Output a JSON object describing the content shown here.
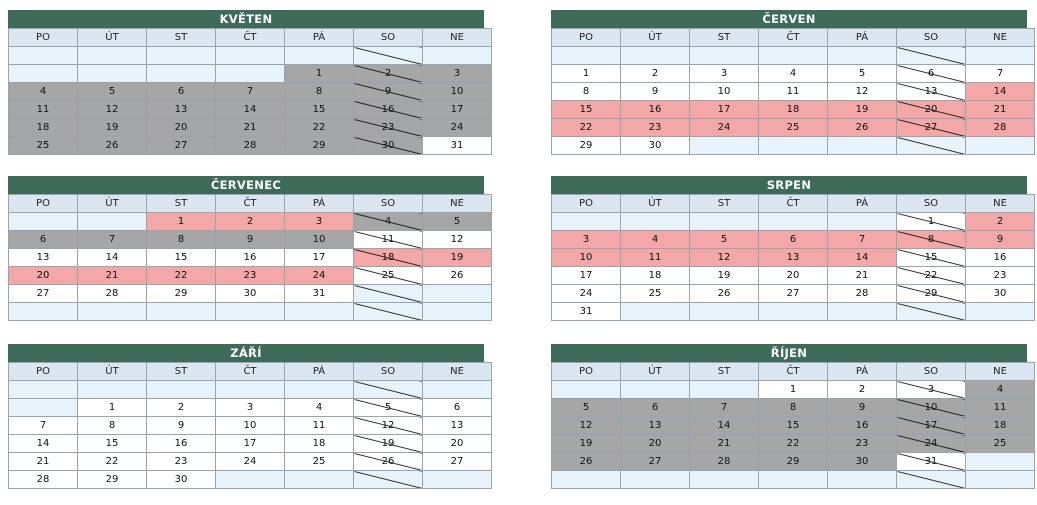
{
  "colors": {
    "header": "#3e6a59",
    "weekday_bg": "#dce6f1",
    "empty": "#e8f2fb",
    "gray": "#a6a6a6",
    "pink": "#f4a7a7",
    "white": "#ffffff"
  },
  "weekdays": [
    "PO",
    "ÚT",
    "ST",
    "ČT",
    "PÁ",
    "SO",
    "NE"
  ],
  "months": [
    {
      "name": "KVĚTEN",
      "rows": [
        [
          [
            "",
            "e"
          ],
          [
            "",
            "e"
          ],
          [
            "",
            "e"
          ],
          [
            "",
            "e"
          ],
          [
            "",
            "e"
          ],
          [
            "",
            "e"
          ],
          [
            "",
            "e"
          ]
        ],
        [
          [
            "",
            "e"
          ],
          [
            "",
            "e"
          ],
          [
            "",
            "e"
          ],
          [
            "",
            "e"
          ],
          [
            "1",
            "g"
          ],
          [
            "2",
            "g"
          ],
          [
            "3",
            "g"
          ]
        ],
        [
          [
            "4",
            "g"
          ],
          [
            "5",
            "g"
          ],
          [
            "6",
            "g"
          ],
          [
            "7",
            "g"
          ],
          [
            "8",
            "g"
          ],
          [
            "9",
            "g"
          ],
          [
            "10",
            "g"
          ]
        ],
        [
          [
            "11",
            "g"
          ],
          [
            "12",
            "g"
          ],
          [
            "13",
            "g"
          ],
          [
            "14",
            "g"
          ],
          [
            "15",
            "g"
          ],
          [
            "16",
            "g"
          ],
          [
            "17",
            "g"
          ]
        ],
        [
          [
            "18",
            "g"
          ],
          [
            "19",
            "g"
          ],
          [
            "20",
            "g"
          ],
          [
            "21",
            "g"
          ],
          [
            "22",
            "g"
          ],
          [
            "23",
            "g"
          ],
          [
            "24",
            "g"
          ]
        ],
        [
          [
            "25",
            "g"
          ],
          [
            "26",
            "g"
          ],
          [
            "27",
            "g"
          ],
          [
            "28",
            "g"
          ],
          [
            "29",
            "g"
          ],
          [
            "30",
            "g"
          ],
          [
            "31",
            "w"
          ]
        ]
      ]
    },
    {
      "name": "ČERVEN",
      "rows": [
        [
          [
            "",
            "e"
          ],
          [
            "",
            "e"
          ],
          [
            "",
            "e"
          ],
          [
            "",
            "e"
          ],
          [
            "",
            "e"
          ],
          [
            "",
            "e"
          ],
          [
            "",
            "e"
          ]
        ],
        [
          [
            "1",
            "w"
          ],
          [
            "2",
            "w"
          ],
          [
            "3",
            "w"
          ],
          [
            "4",
            "w"
          ],
          [
            "5",
            "w"
          ],
          [
            "6",
            "w"
          ],
          [
            "7",
            "w"
          ]
        ],
        [
          [
            "8",
            "w"
          ],
          [
            "9",
            "w"
          ],
          [
            "10",
            "w"
          ],
          [
            "11",
            "w"
          ],
          [
            "12",
            "w"
          ],
          [
            "13",
            "w"
          ],
          [
            "14",
            "p"
          ]
        ],
        [
          [
            "15",
            "p"
          ],
          [
            "16",
            "p"
          ],
          [
            "17",
            "p"
          ],
          [
            "18",
            "p"
          ],
          [
            "19",
            "p"
          ],
          [
            "20",
            "p"
          ],
          [
            "21",
            "p"
          ]
        ],
        [
          [
            "22",
            "p"
          ],
          [
            "23",
            "p"
          ],
          [
            "24",
            "p"
          ],
          [
            "25",
            "p"
          ],
          [
            "26",
            "p"
          ],
          [
            "27",
            "p"
          ],
          [
            "28",
            "p"
          ]
        ],
        [
          [
            "29",
            "w"
          ],
          [
            "30",
            "w"
          ],
          [
            "",
            "e"
          ],
          [
            "",
            "e"
          ],
          [
            "",
            "e"
          ],
          [
            "",
            "e"
          ],
          [
            "",
            "e"
          ]
        ]
      ]
    },
    {
      "name": "ČERVENEC",
      "rows": [
        [
          [
            "",
            "e"
          ],
          [
            "",
            "e"
          ],
          [
            "1",
            "p"
          ],
          [
            "2",
            "p"
          ],
          [
            "3",
            "p"
          ],
          [
            "4",
            "g"
          ],
          [
            "5",
            "g"
          ]
        ],
        [
          [
            "6",
            "g"
          ],
          [
            "7",
            "g"
          ],
          [
            "8",
            "g"
          ],
          [
            "9",
            "g"
          ],
          [
            "10",
            "g"
          ],
          [
            "11",
            "w"
          ],
          [
            "12",
            "w"
          ]
        ],
        [
          [
            "13",
            "w"
          ],
          [
            "14",
            "w"
          ],
          [
            "15",
            "w"
          ],
          [
            "16",
            "w"
          ],
          [
            "17",
            "w"
          ],
          [
            "18",
            "p"
          ],
          [
            "19",
            "p"
          ]
        ],
        [
          [
            "20",
            "p"
          ],
          [
            "21",
            "p"
          ],
          [
            "22",
            "p"
          ],
          [
            "23",
            "p"
          ],
          [
            "24",
            "p"
          ],
          [
            "25",
            "w"
          ],
          [
            "26",
            "w"
          ]
        ],
        [
          [
            "27",
            "w"
          ],
          [
            "28",
            "w"
          ],
          [
            "29",
            "w"
          ],
          [
            "30",
            "w"
          ],
          [
            "31",
            "w"
          ],
          [
            "",
            "e"
          ],
          [
            "",
            "e"
          ]
        ],
        [
          [
            "",
            "e"
          ],
          [
            "",
            "e"
          ],
          [
            "",
            "e"
          ],
          [
            "",
            "e"
          ],
          [
            "",
            "e"
          ],
          [
            "",
            "e"
          ],
          [
            "",
            "e"
          ]
        ]
      ]
    },
    {
      "name": "SRPEN",
      "rows": [
        [
          [
            "",
            "e"
          ],
          [
            "",
            "e"
          ],
          [
            "",
            "e"
          ],
          [
            "",
            "e"
          ],
          [
            "",
            "e"
          ],
          [
            "1",
            "w"
          ],
          [
            "2",
            "p"
          ]
        ],
        [
          [
            "3",
            "p"
          ],
          [
            "4",
            "p"
          ],
          [
            "5",
            "p"
          ],
          [
            "6",
            "p"
          ],
          [
            "7",
            "p"
          ],
          [
            "8",
            "p"
          ],
          [
            "9",
            "p"
          ]
        ],
        [
          [
            "10",
            "p"
          ],
          [
            "11",
            "p"
          ],
          [
            "12",
            "p"
          ],
          [
            "13",
            "p"
          ],
          [
            "14",
            "p"
          ],
          [
            "15",
            "w"
          ],
          [
            "16",
            "w"
          ]
        ],
        [
          [
            "17",
            "w"
          ],
          [
            "18",
            "w"
          ],
          [
            "19",
            "w"
          ],
          [
            "20",
            "w"
          ],
          [
            "21",
            "w"
          ],
          [
            "22",
            "w"
          ],
          [
            "23",
            "w"
          ]
        ],
        [
          [
            "24",
            "w"
          ],
          [
            "25",
            "w"
          ],
          [
            "26",
            "w"
          ],
          [
            "27",
            "w"
          ],
          [
            "28",
            "w"
          ],
          [
            "29",
            "w"
          ],
          [
            "30",
            "w"
          ]
        ],
        [
          [
            "31",
            "w"
          ],
          [
            "",
            "e"
          ],
          [
            "",
            "e"
          ],
          [
            "",
            "e"
          ],
          [
            "",
            "e"
          ],
          [
            "",
            "e"
          ],
          [
            "",
            "e"
          ]
        ]
      ]
    },
    {
      "name": "ZÁŘÍ",
      "rows": [
        [
          [
            "",
            "e"
          ],
          [
            "",
            "e"
          ],
          [
            "",
            "e"
          ],
          [
            "",
            "e"
          ],
          [
            "",
            "e"
          ],
          [
            "",
            "e"
          ],
          [
            "",
            "e"
          ]
        ],
        [
          [
            "",
            "e"
          ],
          [
            "1",
            "w"
          ],
          [
            "2",
            "w"
          ],
          [
            "3",
            "w"
          ],
          [
            "4",
            "w"
          ],
          [
            "5",
            "w"
          ],
          [
            "6",
            "w"
          ]
        ],
        [
          [
            "7",
            "w"
          ],
          [
            "8",
            "w"
          ],
          [
            "9",
            "w"
          ],
          [
            "10",
            "w"
          ],
          [
            "11",
            "w"
          ],
          [
            "12",
            "w"
          ],
          [
            "13",
            "w"
          ]
        ],
        [
          [
            "14",
            "w"
          ],
          [
            "15",
            "w"
          ],
          [
            "16",
            "w"
          ],
          [
            "17",
            "w"
          ],
          [
            "18",
            "w"
          ],
          [
            "19",
            "w"
          ],
          [
            "20",
            "w"
          ]
        ],
        [
          [
            "21",
            "w"
          ],
          [
            "22",
            "w"
          ],
          [
            "23",
            "w"
          ],
          [
            "24",
            "w"
          ],
          [
            "25",
            "w"
          ],
          [
            "26",
            "w"
          ],
          [
            "27",
            "w"
          ]
        ],
        [
          [
            "28",
            "w"
          ],
          [
            "29",
            "w"
          ],
          [
            "30",
            "w"
          ],
          [
            "",
            "e"
          ],
          [
            "",
            "e"
          ],
          [
            "",
            "e"
          ],
          [
            "",
            "e"
          ]
        ]
      ]
    },
    {
      "name": "ŘÍJEN",
      "rows": [
        [
          [
            "",
            "e"
          ],
          [
            "",
            "e"
          ],
          [
            "",
            "e"
          ],
          [
            "1",
            "w"
          ],
          [
            "2",
            "w"
          ],
          [
            "3",
            "w"
          ],
          [
            "4",
            "g"
          ]
        ],
        [
          [
            "5",
            "g"
          ],
          [
            "6",
            "g"
          ],
          [
            "7",
            "g"
          ],
          [
            "8",
            "g"
          ],
          [
            "9",
            "g"
          ],
          [
            "10",
            "g"
          ],
          [
            "11",
            "g"
          ]
        ],
        [
          [
            "12",
            "g"
          ],
          [
            "13",
            "g"
          ],
          [
            "14",
            "g"
          ],
          [
            "15",
            "g"
          ],
          [
            "16",
            "g"
          ],
          [
            "17",
            "g"
          ],
          [
            "18",
            "g"
          ]
        ],
        [
          [
            "19",
            "g"
          ],
          [
            "20",
            "g"
          ],
          [
            "21",
            "g"
          ],
          [
            "22",
            "g"
          ],
          [
            "23",
            "g"
          ],
          [
            "24",
            "g"
          ],
          [
            "25",
            "g"
          ]
        ],
        [
          [
            "26",
            "g"
          ],
          [
            "27",
            "g"
          ],
          [
            "28",
            "g"
          ],
          [
            "29",
            "g"
          ],
          [
            "30",
            "g"
          ],
          [
            "31",
            "w"
          ],
          [
            "",
            "e"
          ]
        ],
        [
          [
            "",
            "e"
          ],
          [
            "",
            "e"
          ],
          [
            "",
            "e"
          ],
          [
            "",
            "e"
          ],
          [
            "",
            "e"
          ],
          [
            "",
            "e"
          ],
          [
            "",
            "e"
          ]
        ]
      ]
    }
  ]
}
